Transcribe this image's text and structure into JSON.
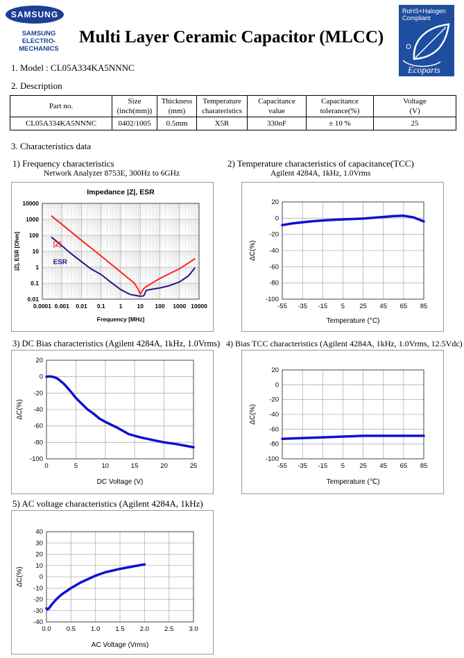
{
  "header": {
    "logo_text": "SAMSUNG",
    "logo_sub1": "SAMSUNG",
    "logo_sub2": "ELECTRO-MECHANICS",
    "title": "Multi Layer Ceramic Capacitor (MLCC)",
    "eco_line1": "RoHS+Halogen",
    "eco_line2": "Compliant",
    "eco_brand": "Ecoparts"
  },
  "model": {
    "label": "1. Model : CL05A334KA5NNNC"
  },
  "description": {
    "label": "2. Description",
    "headers": [
      [
        "Part no.",
        ""
      ],
      [
        "Size",
        "(inch(mm))"
      ],
      [
        "Thickness",
        "(mm)"
      ],
      [
        "Temperature",
        "charateristics"
      ],
      [
        "Capacitance",
        "value"
      ],
      [
        "Capacitance",
        "tolerance(%)"
      ],
      [
        "Voltage",
        "(V)"
      ]
    ],
    "row": [
      "CL05A334KA5NNNC",
      "0402/1005",
      "0.5mm",
      "X5R",
      "330nF",
      "± 10 %",
      "25"
    ]
  },
  "characteristics": {
    "label": "3. Characteristics data"
  },
  "chart_data": [
    {
      "type": "line",
      "caption": "1) Frequency characteristics",
      "note": "Network Analyzer 8753E, 300Hz to 6GHz",
      "title": "Impedance |Z|,  ESR",
      "xlabel": "Frequency [MHz]",
      "ylabel": "|Z|, ESR [Ohm]",
      "xscale": "log",
      "yscale": "log",
      "xlim": [
        0.0001,
        10000
      ],
      "ylim": [
        0.01,
        10000
      ],
      "xticks": [
        "0.0001",
        "0.001",
        "0.01",
        "0.1",
        "1",
        "10",
        "100",
        "1000",
        "10000"
      ],
      "yticks": [
        "10000",
        "1000",
        "100",
        "10",
        "1",
        "0.1",
        "0.01"
      ],
      "grid": true,
      "series": [
        {
          "name": "|Z|",
          "color": "#ff2020",
          "x": [
            0.0003,
            0.001,
            0.01,
            0.1,
            1,
            5,
            8,
            10,
            12,
            15,
            20,
            50,
            100,
            1000,
            6000
          ],
          "y": [
            1600,
            480,
            48,
            5,
            0.5,
            0.1,
            0.04,
            0.02,
            0.03,
            0.045,
            0.06,
            0.12,
            0.2,
            0.8,
            3.3
          ]
        },
        {
          "name": "ESR",
          "color": "#1a1a8c",
          "x": [
            0.0003,
            0.001,
            0.003,
            0.01,
            0.03,
            0.1,
            0.3,
            1,
            3,
            10,
            15,
            20,
            30,
            100,
            300,
            1000,
            3000,
            6000
          ],
          "y": [
            75,
            22,
            7,
            2.2,
            0.8,
            0.35,
            0.12,
            0.04,
            0.02,
            0.015,
            0.016,
            0.035,
            0.04,
            0.05,
            0.07,
            0.12,
            0.3,
            0.9
          ]
        }
      ]
    },
    {
      "type": "line",
      "caption": "2) Temperature characteristics of capacitance(TCC)",
      "note": "Agilent 4284A, 1kHz, 1.0Vrms",
      "xlabel": "Temperature (°C)",
      "ylabel": "ΔC(%)",
      "xlim": [
        -55,
        85
      ],
      "ylim": [
        -100,
        20
      ],
      "xticks": [
        "-55",
        "-35",
        "-15",
        "5",
        "25",
        "45",
        "65",
        "85"
      ],
      "yticks": [
        "20",
        "0",
        "-20",
        "-40",
        "-60",
        "-80",
        "-100"
      ],
      "grid": true,
      "series": [
        {
          "color": "#1010d0",
          "x": [
            -55,
            -45,
            -35,
            -25,
            -15,
            -5,
            5,
            15,
            25,
            35,
            45,
            55,
            65,
            75,
            85
          ],
          "y": [
            -8.5,
            -6.5,
            -5,
            -3.8,
            -2.8,
            -2,
            -1.5,
            -1,
            -0.5,
            0.5,
            1.5,
            2.5,
            3,
            1,
            -4
          ]
        }
      ]
    },
    {
      "type": "line",
      "caption": "3) DC Bias characteristics (Agilent 4284A, 1kHz, 1.0Vrms)",
      "xlabel": "DC Voltage (V)",
      "ylabel": "ΔC(%)",
      "xlim": [
        0,
        25
      ],
      "ylim": [
        -100,
        20
      ],
      "xticks": [
        "0",
        "5",
        "10",
        "15",
        "20",
        "25"
      ],
      "yticks": [
        "20",
        "0",
        "-20",
        "-40",
        "-60",
        "-80",
        "-100"
      ],
      "grid": true,
      "series": [
        {
          "color": "#1010d0",
          "x": [
            0,
            0.5,
            1,
            1.5,
            2,
            3,
            4,
            5,
            6,
            7,
            8,
            9,
            10,
            12,
            14,
            16,
            18,
            20,
            22,
            25
          ],
          "y": [
            0,
            0.3,
            0,
            -1,
            -3,
            -9,
            -17,
            -26,
            -33,
            -40,
            -45,
            -51,
            -55,
            -62,
            -70,
            -74,
            -77,
            -80,
            -82,
            -86
          ]
        }
      ]
    },
    {
      "type": "line",
      "caption": "4) Bias TCC characteristics (Agilent 4284A, 1kHz, 1.0Vrms, 12.5Vdc)",
      "xlabel": "Temperature (℃)",
      "ylabel": "ΔC(%)",
      "xlim": [
        -55,
        85
      ],
      "ylim": [
        -100,
        20
      ],
      "xticks": [
        "-55",
        "-35",
        "-15",
        "5",
        "25",
        "45",
        "65",
        "85"
      ],
      "yticks": [
        "20",
        "0",
        "-20",
        "-40",
        "-60",
        "-80",
        "-100"
      ],
      "grid": true,
      "series": [
        {
          "color": "#1010d0",
          "x": [
            -55,
            -35,
            -15,
            5,
            25,
            45,
            65,
            85
          ],
          "y": [
            -73,
            -72,
            -71,
            -70,
            -69,
            -69,
            -69,
            -69
          ]
        }
      ]
    },
    {
      "type": "line",
      "caption": "5) AC voltage characteristics (Agilent 4284A, 1kHz)",
      "xlabel": "AC Voltage (Vrms)",
      "ylabel": "ΔC(%)",
      "xlim": [
        0,
        3
      ],
      "ylim": [
        -40,
        40
      ],
      "xticks": [
        "0.0",
        "0.5",
        "1.0",
        "1.5",
        "2.0",
        "2.5",
        "3.0"
      ],
      "yticks": [
        "40",
        "30",
        "20",
        "10",
        "0",
        "-10",
        "-20",
        "-30",
        "-40"
      ],
      "grid": true,
      "series": [
        {
          "color": "#1010d0",
          "x": [
            0.0,
            0.02,
            0.05,
            0.1,
            0.2,
            0.3,
            0.5,
            0.7,
            1.0,
            1.2,
            1.5,
            1.8,
            2.0
          ],
          "y": [
            -28,
            -29,
            -28,
            -25,
            -20,
            -16,
            -10,
            -5,
            1,
            4,
            7,
            9.5,
            11
          ]
        }
      ]
    }
  ]
}
